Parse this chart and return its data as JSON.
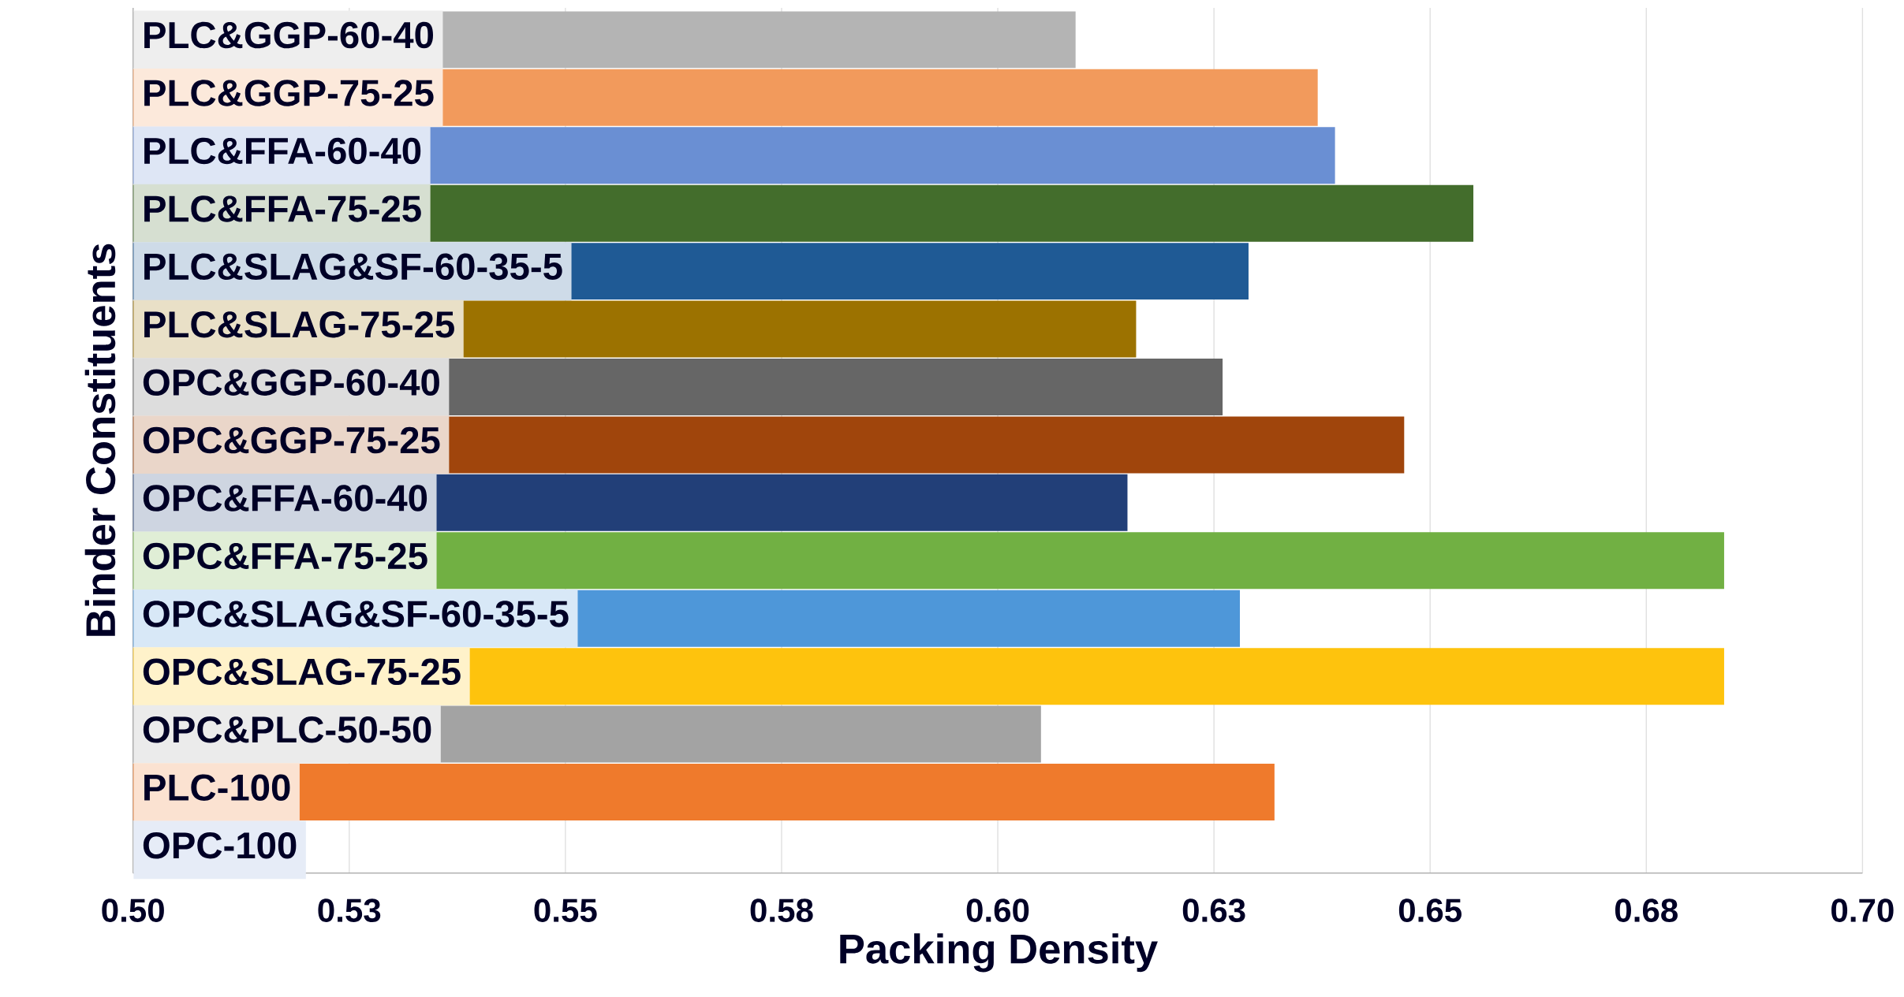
{
  "chart_data": {
    "type": "bar",
    "orientation": "horizontal",
    "xlabel": "Packing Density",
    "ylabel": "Binder Constituents",
    "categories": [
      "PLC&GGP-60-40",
      "PLC&GGP-75-25",
      "PLC&FFA-60-40",
      "PLC&FFA-75-25",
      "PLC&SLAG&SF-60-35-5",
      "PLC&SLAG-75-25",
      "OPC&GGP-60-40",
      "OPC&GGP-75-25",
      "OPC&FFA-60-40",
      "OPC&FFA-75-25",
      "OPC&SLAG&SF-60-35-5",
      "OPC&SLAG-75-25",
      "OPC&PLC-50-50",
      "PLC-100",
      "OPC-100"
    ],
    "values": [
      0.609,
      0.637,
      0.639,
      0.655,
      0.629,
      0.616,
      0.626,
      0.647,
      0.615,
      0.684,
      0.628,
      0.684,
      0.605,
      0.632,
      null
    ],
    "colors": [
      "#b4b4b4",
      "#f29a5c",
      "#6a8fd3",
      "#436d2c",
      "#1f5a95",
      "#9c7200",
      "#666666",
      "#a0450c",
      "#223f78",
      "#71b043",
      "#4e97d9",
      "#fec30d",
      "#a3a3a3",
      "#ef7a2c",
      "#8faadc"
    ],
    "xlim": [
      0.5,
      0.7
    ],
    "xticks": [
      {
        "value": 0.5,
        "label": "0.50"
      },
      {
        "value": 0.525,
        "label": "0.53"
      },
      {
        "value": 0.55,
        "label": "0.55"
      },
      {
        "value": 0.575,
        "label": "0.58"
      },
      {
        "value": 0.6,
        "label": "0.60"
      },
      {
        "value": 0.625,
        "label": "0.63"
      },
      {
        "value": 0.65,
        "label": "0.65"
      },
      {
        "value": 0.675,
        "label": "0.68"
      },
      {
        "value": 0.7,
        "label": "0.70"
      }
    ],
    "grid": "x"
  }
}
